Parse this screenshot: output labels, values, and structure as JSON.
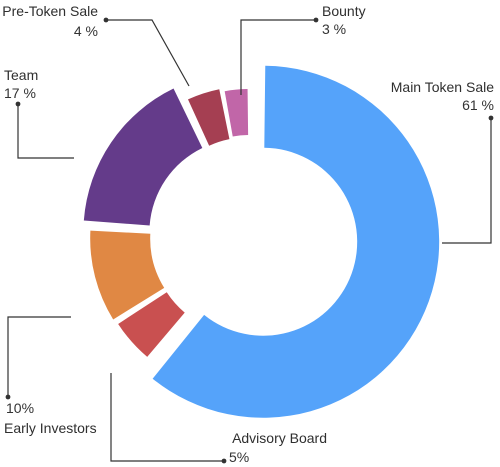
{
  "chart_data": {
    "type": "pie",
    "variant": "donut-exploded",
    "slices": [
      {
        "label": "Main Token Sale",
        "value_label": "61 %",
        "value": 61,
        "color": "#55a3fa"
      },
      {
        "label": "Advisory Board",
        "value_label": "5%",
        "value": 5,
        "color": "#c95050"
      },
      {
        "label": "Early Investors",
        "value_label": "10%",
        "value": 10,
        "color": "#e08844"
      },
      {
        "label": "Team",
        "value_label": "17 %",
        "value": 17,
        "color": "#643b8a"
      },
      {
        "label": "Pre-Token Sale",
        "value_label": "4 %",
        "value": 4,
        "color": "#a53f52"
      },
      {
        "label": "Bounty",
        "value_label": "3 %",
        "value": 3,
        "color": "#c166a8"
      }
    ]
  }
}
